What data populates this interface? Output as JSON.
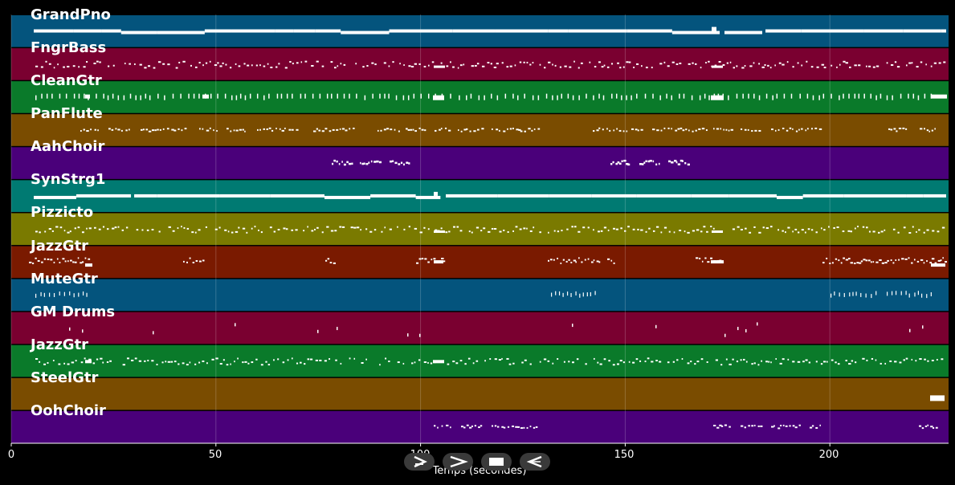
{
  "chart_data": {
    "type": "piano-roll",
    "xlabel": "Temps (secondes)",
    "xlim": [
      0,
      229
    ],
    "xticks": [
      0,
      50,
      100,
      150,
      200
    ],
    "tracks": [
      {
        "name": "GrandPno",
        "color": "#04547d",
        "style": "bars"
      },
      {
        "name": "FngrBass",
        "color": "#7a0030",
        "style": "dense"
      },
      {
        "name": "CleanGtr",
        "color": "#0a7a2a",
        "style": "ticks"
      },
      {
        "name": "PanFlute",
        "color": "#7a4c00",
        "style": "phrases"
      },
      {
        "name": "AahChoir",
        "color": "#4a007a",
        "style": "sparse"
      },
      {
        "name": "SynStrg1",
        "color": "#007a72",
        "style": "bars"
      },
      {
        "name": "Pizzicto",
        "color": "#7a7a00",
        "style": "dense"
      },
      {
        "name": "JazzGtr",
        "color": "#7a1a00",
        "style": "solo"
      },
      {
        "name": "MuteGtr",
        "color": "#04547d",
        "style": "mute"
      },
      {
        "name": "GM Drums",
        "color": "#7a0030",
        "style": "drums"
      },
      {
        "name": "JazzGtr",
        "color": "#0a7a2a",
        "style": "dense2"
      },
      {
        "name": "SteelGtr",
        "color": "#7a4c00",
        "style": "end"
      },
      {
        "name": "OohChoir",
        "color": "#4a007a",
        "style": "phrases2"
      }
    ]
  },
  "controls": [
    {
      "name": "play-button",
      "icon": "play-icon"
    },
    {
      "name": "forward-button",
      "icon": "forward-icon"
    },
    {
      "name": "stop-button",
      "icon": "stop-icon"
    },
    {
      "name": "back-button",
      "icon": "back-icon"
    }
  ]
}
